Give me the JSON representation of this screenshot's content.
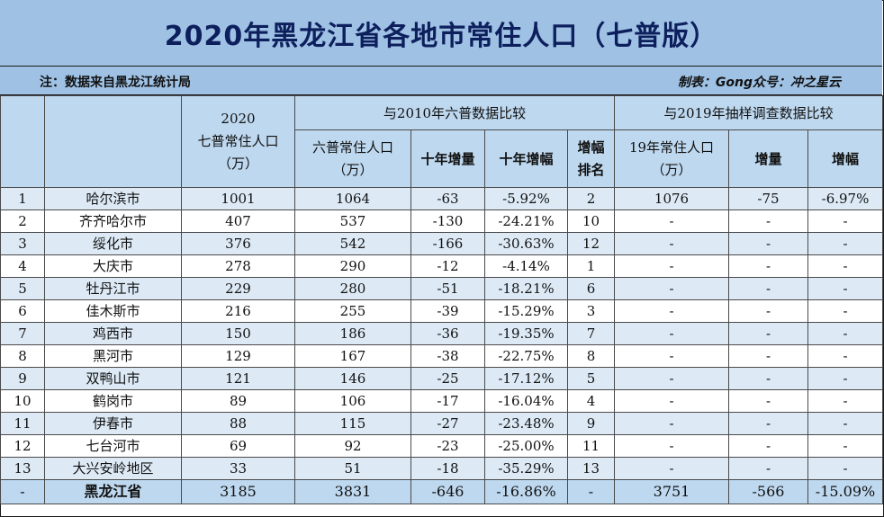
{
  "title": "2020年黑龙江省各地市常住人口（七普版）",
  "note_left": "注：数据来自黑龙江统计局",
  "note_right": "制表：Gong众号：冲之星云",
  "headers": {
    "pop2020_line1": "2020",
    "pop2020_line2": "七普常住人口",
    "pop2020_line3": "（万）",
    "group2010": "与2010年六普数据比较",
    "group2019": "与2019年抽样调查数据比较",
    "pop2010_line1": "六普常住人口",
    "pop2010_line2": "（万）",
    "inc10": "十年增量",
    "rate10": "十年增幅",
    "rank_line1": "增幅",
    "rank_line2": "排名",
    "pop2019_line1": "19年常住人口",
    "pop2019_line2": "（万）",
    "inc19": "增量",
    "rate19": "增幅"
  },
  "rows": [
    {
      "no": "1",
      "city": "哈尔滨市",
      "p2020": "1001",
      "p2010": "1064",
      "inc": "-63",
      "rate": "-5.92%",
      "rank": "2",
      "p2019": "1076",
      "inc19": "-75",
      "rate19": "-6.97%"
    },
    {
      "no": "2",
      "city": "齐齐哈尔市",
      "p2020": "407",
      "p2010": "537",
      "inc": "-130",
      "rate": "-24.21%",
      "rank": "10",
      "p2019": "-",
      "inc19": "-",
      "rate19": "-"
    },
    {
      "no": "3",
      "city": "绥化市",
      "p2020": "376",
      "p2010": "542",
      "inc": "-166",
      "rate": "-30.63%",
      "rank": "12",
      "p2019": "-",
      "inc19": "-",
      "rate19": "-"
    },
    {
      "no": "4",
      "city": "大庆市",
      "p2020": "278",
      "p2010": "290",
      "inc": "-12",
      "rate": "-4.14%",
      "rank": "1",
      "p2019": "-",
      "inc19": "-",
      "rate19": "-"
    },
    {
      "no": "5",
      "city": "牡丹江市",
      "p2020": "229",
      "p2010": "280",
      "inc": "-51",
      "rate": "-18.21%",
      "rank": "6",
      "p2019": "-",
      "inc19": "-",
      "rate19": "-"
    },
    {
      "no": "6",
      "city": "佳木斯市",
      "p2020": "216",
      "p2010": "255",
      "inc": "-39",
      "rate": "-15.29%",
      "rank": "3",
      "p2019": "-",
      "inc19": "-",
      "rate19": "-"
    },
    {
      "no": "7",
      "city": "鸡西市",
      "p2020": "150",
      "p2010": "186",
      "inc": "-36",
      "rate": "-19.35%",
      "rank": "7",
      "p2019": "-",
      "inc19": "-",
      "rate19": "-"
    },
    {
      "no": "8",
      "city": "黑河市",
      "p2020": "129",
      "p2010": "167",
      "inc": "-38",
      "rate": "-22.75%",
      "rank": "8",
      "p2019": "-",
      "inc19": "-",
      "rate19": "-"
    },
    {
      "no": "9",
      "city": "双鸭山市",
      "p2020": "121",
      "p2010": "146",
      "inc": "-25",
      "rate": "-17.12%",
      "rank": "5",
      "p2019": "-",
      "inc19": "-",
      "rate19": "-"
    },
    {
      "no": "10",
      "city": "鹤岗市",
      "p2020": "89",
      "p2010": "106",
      "inc": "-17",
      "rate": "-16.04%",
      "rank": "4",
      "p2019": "-",
      "inc19": "-",
      "rate19": "-"
    },
    {
      "no": "11",
      "city": "伊春市",
      "p2020": "88",
      "p2010": "115",
      "inc": "-27",
      "rate": "-23.48%",
      "rank": "9",
      "p2019": "-",
      "inc19": "-",
      "rate19": "-"
    },
    {
      "no": "12",
      "city": "七台河市",
      "p2020": "69",
      "p2010": "92",
      "inc": "-23",
      "rate": "-25.00%",
      "rank": "11",
      "p2019": "-",
      "inc19": "-",
      "rate19": "-"
    },
    {
      "no": "13",
      "city": "大兴安岭地区",
      "p2020": "33",
      "p2010": "51",
      "inc": "-18",
      "rate": "-35.29%",
      "rank": "13",
      "p2019": "-",
      "inc19": "-",
      "rate19": "-"
    }
  ],
  "total": {
    "no": "-",
    "city": "黑龙江省",
    "p2020": "3185",
    "p2010": "3831",
    "inc": "-646",
    "rate": "-16.86%",
    "rank": "-",
    "p2019": "3751",
    "inc19": "-566",
    "rate19": "-15.09%"
  },
  "colors": {
    "title_bg": "#9ec1e4",
    "header_bg": "#bed8ef",
    "stripe": "#ddeaf6",
    "title_text": "#0d1f5c"
  }
}
